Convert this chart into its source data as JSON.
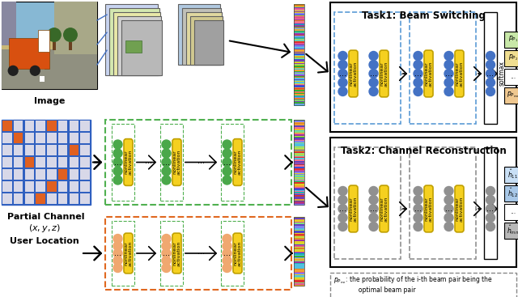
{
  "bg_color": "#ffffff",
  "fig_width": 6.4,
  "fig_height": 3.67,
  "dpi": 100,
  "image_label": "Image",
  "partial_channel_label": "Partial Channel",
  "user_location_label": "(x, y, z)\nUser Location",
  "task1_title": "Task1: Beam Switching",
  "task2_title": "Task2: Channel Reconstruction",
  "softmax_label": "softmax",
  "beam_outputs": [
    "$p_{P_1}$",
    "$p_{P_2}$",
    "...",
    "$p_{P_{mn}}$"
  ],
  "beam_output_colors": [
    "#c8e8a8",
    "#f0de90",
    "#ffffff",
    "#f0c890"
  ],
  "channel_outputs": [
    "$\\hat{h}_{11}$",
    "$\\hat{h}_{12}$",
    "...",
    "$\\hat{h}_{mn}$"
  ],
  "channel_output_colors": [
    "#c8dff5",
    "#a8c8e8",
    "#ffffff",
    "#b8b8b8"
  ],
  "node_color_blue": "#4472c4",
  "node_color_green": "#4aa84a",
  "node_color_orange": "#f0a870",
  "node_color_gray": "#909090",
  "activation_color": "#f5d020",
  "border_green": "#50b050",
  "border_orange": "#e06820",
  "border_blue_dashed": "#5b9bd5",
  "border_gray_dashed": "#909090",
  "border_inner_green": "#50b050",
  "border_inner_blue": "#4472c4"
}
